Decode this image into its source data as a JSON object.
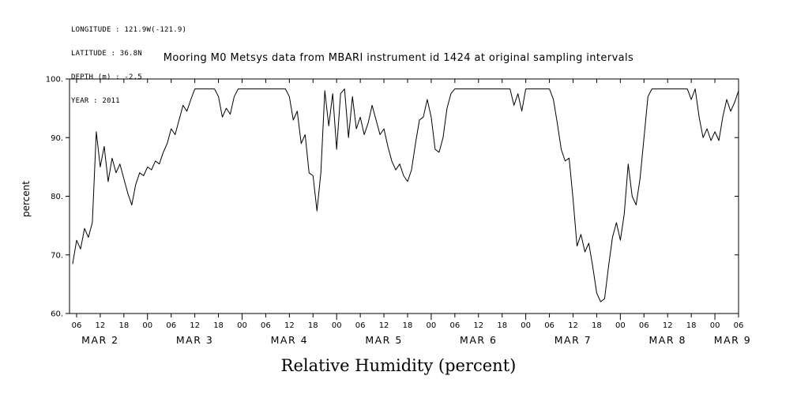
{
  "meta": {
    "longitude": "LONGITUDE : 121.9W(-121.9)",
    "latitude": "LATITUDE : 36.8N",
    "depth": "DEPTH (m) : -2.5",
    "year": "YEAR : 2011"
  },
  "title": "Mooring M0 Metsys data from MBARI instrument id 1424 at original sampling intervals",
  "caption": "Relative Humidity (percent)",
  "chart_data": {
    "type": "line",
    "title": "Mooring M0 Metsys data from MBARI instrument id 1424 at original sampling intervals",
    "xlabel": "Relative Humidity (percent)",
    "ylabel": "percent",
    "ylim": [
      60,
      100
    ],
    "x_unit": "hours since MAR 2 00:00 (YEAR 2011)",
    "x_range_hours": [
      4.2,
      174
    ],
    "line_color": "#000000",
    "grid": false,
    "legend": "none",
    "y_axis": {
      "ticks": [
        100,
        90,
        80,
        70,
        60
      ],
      "tick_labels": [
        "100.",
        "90.",
        "80.",
        "70.",
        "60."
      ]
    },
    "x_axis": {
      "tick_start": 6,
      "tick_end": 174,
      "tick_step": 6,
      "label_cycle": [
        "06",
        "12",
        "18",
        "00"
      ],
      "day_labels": [
        {
          "label": "MAR  2",
          "hour": 12
        },
        {
          "label": "MAR  3",
          "hour": 36
        },
        {
          "label": "MAR  4",
          "hour": 60
        },
        {
          "label": "MAR  5",
          "hour": 84
        },
        {
          "label": "MAR  6",
          "hour": 108
        },
        {
          "label": "MAR  7",
          "hour": 132
        },
        {
          "label": "MAR  8",
          "hour": 156
        },
        {
          "label": "MAR  9",
          "hour": 172.5
        }
      ]
    },
    "series": [
      {
        "name": "relative_humidity_percent",
        "x_start_hour": 5,
        "x_step_hours": 1,
        "values": [
          68.5,
          72.5,
          71,
          74.5,
          73,
          75.5,
          91,
          85,
          88.5,
          82.5,
          86.5,
          84,
          85.5,
          83,
          80.5,
          78.5,
          82,
          84,
          83.5,
          85,
          84.5,
          86,
          85.5,
          87.5,
          89,
          91.5,
          90.5,
          93,
          95.5,
          94.5,
          96.5,
          98.3,
          98.3,
          98.3,
          98.3,
          98.3,
          98.3,
          97,
          93.5,
          95,
          94,
          97,
          98.3,
          98.3,
          98.3,
          98.3,
          98.3,
          98.3,
          98.3,
          98.3,
          98.3,
          98.3,
          98.3,
          98.3,
          98.3,
          97,
          93,
          94.5,
          89,
          90.5,
          84,
          83.5,
          77.5,
          84,
          98,
          92,
          97.5,
          88,
          97.5,
          98.3,
          90,
          97,
          91.5,
          93.5,
          90.5,
          92.5,
          95.5,
          93,
          90.5,
          91.5,
          88.5,
          86,
          84.5,
          85.5,
          83.5,
          82.5,
          84.5,
          89,
          93,
          93.5,
          96.5,
          93.5,
          88,
          87.5,
          90,
          95,
          97.5,
          98.3,
          98.3,
          98.3,
          98.3,
          98.3,
          98.3,
          98.3,
          98.3,
          98.3,
          98.3,
          98.3,
          98.3,
          98.3,
          98.3,
          98.3,
          95.5,
          97.5,
          94.5,
          98.3,
          98.3,
          98.3,
          98.3,
          98.3,
          98.3,
          98.3,
          96.5,
          92.5,
          88,
          86,
          86.5,
          79.5,
          71.5,
          73.5,
          70.5,
          72,
          68,
          63.5,
          62,
          62.5,
          68,
          73,
          75.5,
          72.5,
          77,
          85.5,
          80,
          78.5,
          83,
          90,
          97,
          98.3,
          98.3,
          98.3,
          98.3,
          98.3,
          98.3,
          98.3,
          98.3,
          98.3,
          98.3,
          96.5,
          98.3,
          93.5,
          90,
          91.5,
          89.5,
          91,
          89.5,
          93.5,
          96.5,
          94.5,
          96,
          98
        ]
      }
    ]
  }
}
